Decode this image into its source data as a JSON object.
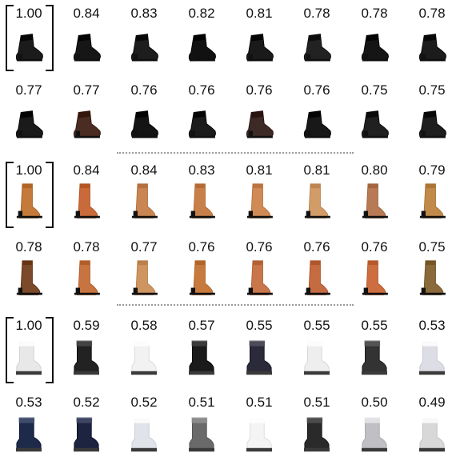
{
  "groups": [
    {
      "name": "black-ankle-boots",
      "colors": [
        "#1b1b1b",
        "#161616",
        "#1d1d1d",
        "#111111",
        "#1a1a1a",
        "#222222",
        "#151515",
        "#1c1c1c",
        "#1a1a1a",
        "#4a2c22",
        "#141414",
        "#1b1b1b",
        "#3d2a26",
        "#181818",
        "#202020",
        "#1e1e1e"
      ],
      "items": [
        {
          "score": "1.00",
          "style": "ankle",
          "query": true
        },
        {
          "score": "0.84",
          "style": "ankle"
        },
        {
          "score": "0.83",
          "style": "ankle"
        },
        {
          "score": "0.82",
          "style": "ankle"
        },
        {
          "score": "0.81",
          "style": "ankle"
        },
        {
          "score": "0.78",
          "style": "ankle"
        },
        {
          "score": "0.78",
          "style": "ankle"
        },
        {
          "score": "0.78",
          "style": "ankle"
        },
        {
          "score": "0.77",
          "style": "ankle"
        },
        {
          "score": "0.77",
          "style": "ankle"
        },
        {
          "score": "0.76",
          "style": "ankle"
        },
        {
          "score": "0.76",
          "style": "ankle"
        },
        {
          "score": "0.76",
          "style": "ankle"
        },
        {
          "score": "0.76",
          "style": "ankle"
        },
        {
          "score": "0.75",
          "style": "ankle"
        },
        {
          "score": "0.75",
          "style": "ankle"
        }
      ]
    },
    {
      "name": "tan-tall-boots",
      "colors": [
        "#c47a3a",
        "#c96a3a",
        "#c98552",
        "#c8804a",
        "#d08a55",
        "#d29c68",
        "#b87a55",
        "#c28a4a",
        "#7a4a2a",
        "#c87440",
        "#cf9560",
        "#c77a3d",
        "#c9764b",
        "#c56b42",
        "#cc6e40",
        "#8a6a3a"
      ],
      "items": [
        {
          "score": "1.00",
          "style": "tall",
          "query": true
        },
        {
          "score": "0.84",
          "style": "tall"
        },
        {
          "score": "0.84",
          "style": "tall"
        },
        {
          "score": "0.83",
          "style": "tall"
        },
        {
          "score": "0.81",
          "style": "tall"
        },
        {
          "score": "0.81",
          "style": "tall"
        },
        {
          "score": "0.80",
          "style": "tall"
        },
        {
          "score": "0.79",
          "style": "tall"
        },
        {
          "score": "0.78",
          "style": "tall"
        },
        {
          "score": "0.78",
          "style": "tall"
        },
        {
          "score": "0.77",
          "style": "tall"
        },
        {
          "score": "0.76",
          "style": "tall"
        },
        {
          "score": "0.76",
          "style": "tall"
        },
        {
          "score": "0.76",
          "style": "tall"
        },
        {
          "score": "0.76",
          "style": "tall"
        },
        {
          "score": "0.75",
          "style": "tall"
        }
      ]
    },
    {
      "name": "winter-boots",
      "colors": [
        "#e8e8e8",
        "#222222",
        "#f2f2f2",
        "#1a1a1a",
        "#2a2a3a",
        "#eeeeee",
        "#333333",
        "#dddde6",
        "#1e2a4a",
        "#1c2440",
        "#e0e4ea",
        "#6a6a6a",
        "#f4f4f4",
        "#2a2a2a",
        "#c0c0c4",
        "#d8d8d8"
      ],
      "items": [
        {
          "score": "1.00",
          "style": "winter",
          "query": true
        },
        {
          "score": "0.59",
          "style": "winter"
        },
        {
          "score": "0.58",
          "style": "winter"
        },
        {
          "score": "0.57",
          "style": "winter"
        },
        {
          "score": "0.55",
          "style": "winter"
        },
        {
          "score": "0.55",
          "style": "winter"
        },
        {
          "score": "0.55",
          "style": "winter"
        },
        {
          "score": "0.53",
          "style": "winter"
        },
        {
          "score": "0.53",
          "style": "winter"
        },
        {
          "score": "0.52",
          "style": "winter"
        },
        {
          "score": "0.52",
          "style": "winter"
        },
        {
          "score": "0.51",
          "style": "winter"
        },
        {
          "score": "0.51",
          "style": "winter"
        },
        {
          "score": "0.51",
          "style": "winter"
        },
        {
          "score": "0.50",
          "style": "winter"
        },
        {
          "score": "0.49",
          "style": "winter"
        }
      ]
    }
  ]
}
